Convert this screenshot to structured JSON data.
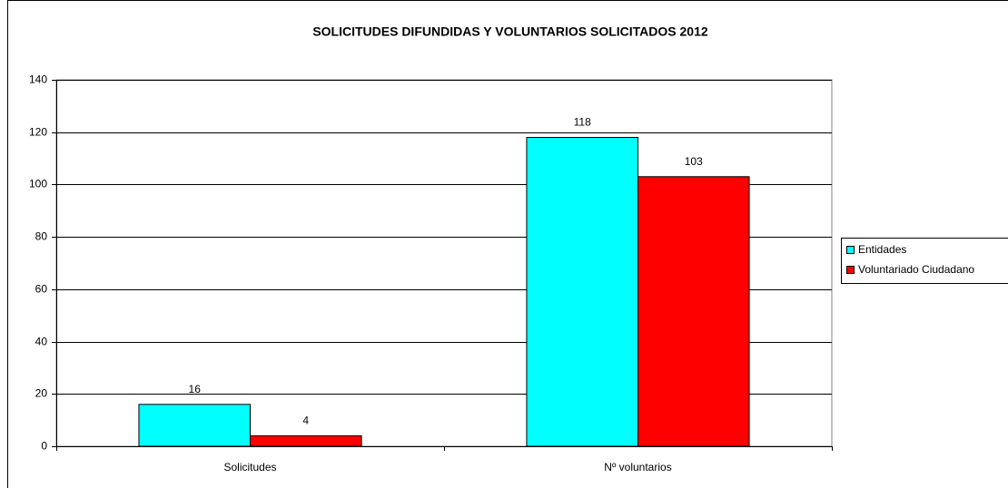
{
  "chart_data": {
    "type": "bar",
    "title": "SOLICITUDES DIFUNDIDAS Y VOLUNTARIOS SOLICITADOS 2012",
    "categories": [
      "Solicitudes",
      "Nº voluntarios"
    ],
    "series": [
      {
        "name": "Entidades",
        "color": "#00ffff",
        "values": [
          16,
          118
        ]
      },
      {
        "name": "Voluntariado Ciudadano",
        "color": "#ff0000",
        "values": [
          4,
          103
        ]
      }
    ],
    "ylim": [
      0,
      140
    ],
    "yticks": [
      0,
      20,
      40,
      60,
      80,
      100,
      120,
      140
    ],
    "grid": true,
    "legend": "right"
  }
}
